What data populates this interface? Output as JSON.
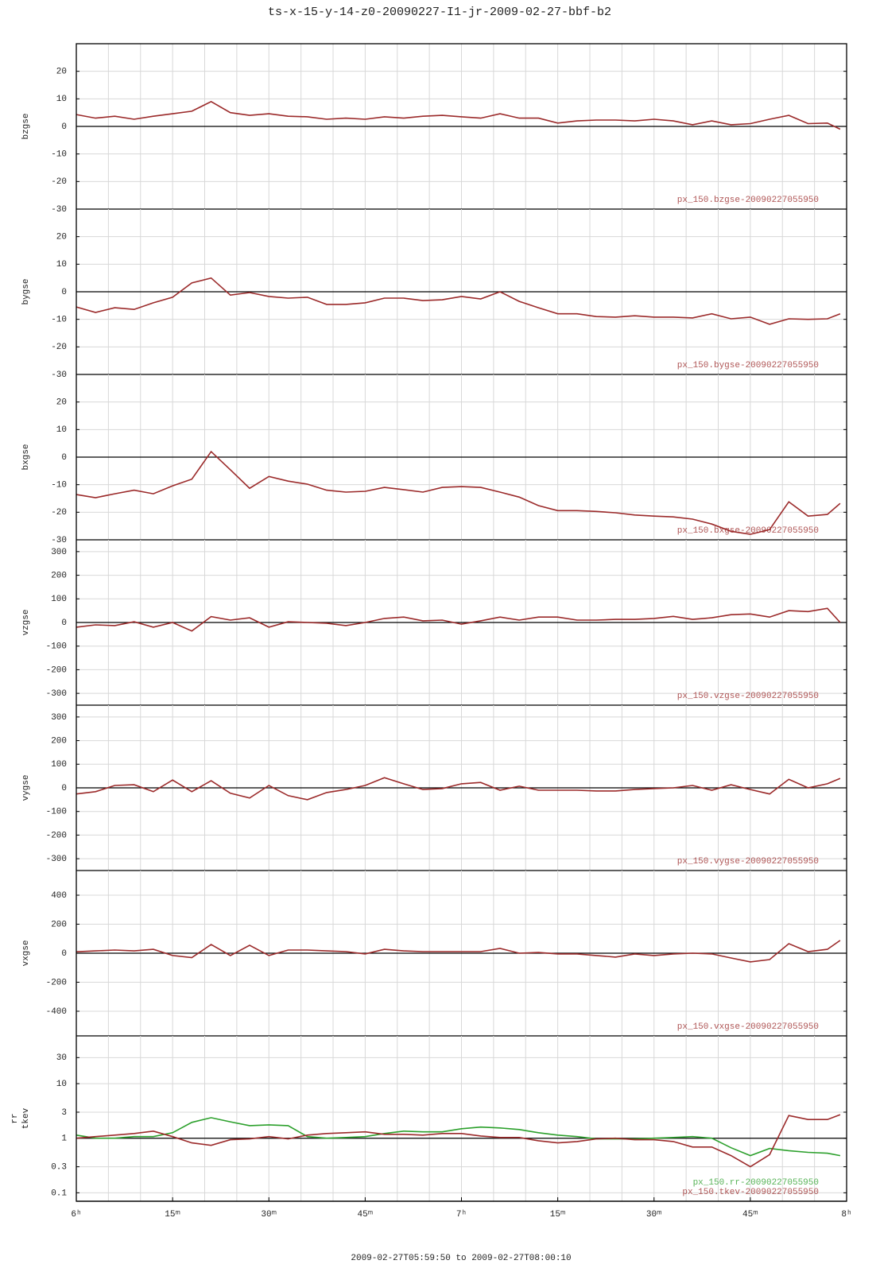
{
  "title": "ts-x-15-y-14-z0-20090227-I1-jr-2009-02-27-bbf-b2",
  "footer": "2009-02-27T05:59:50 to 2009-02-27T08:00:10",
  "chart_data": [
    {
      "type": "line",
      "ylabel": [
        "bzgse"
      ],
      "xlim": [
        0,
        120
      ],
      "ylim": [
        -30,
        30
      ],
      "yticks": [
        -30,
        -20,
        -10,
        0,
        10,
        20
      ],
      "hline": 0,
      "grid": true,
      "xgrid": [
        0,
        5,
        10,
        15,
        20,
        25,
        30,
        35,
        40,
        45,
        50,
        55,
        60,
        65,
        70,
        75,
        80,
        85,
        90,
        95,
        100,
        105,
        110,
        115,
        120
      ],
      "x": [
        0,
        3,
        6,
        9,
        12,
        15,
        18,
        21,
        24,
        27,
        30,
        33,
        36,
        39,
        42,
        45,
        48,
        51,
        54,
        57,
        60,
        63,
        66,
        69,
        72,
        75,
        78,
        81,
        84,
        87,
        90,
        93,
        96,
        99,
        102,
        105,
        108,
        111,
        114,
        117,
        119
      ],
      "series": [
        {
          "name": "px_150.bzgse-20090227055950",
          "color": "#9b2a2a",
          "values": [
            4.3,
            3,
            3.7,
            2.6,
            3.7,
            4.6,
            5.5,
            9,
            5,
            4,
            4.6,
            3.7,
            3.5,
            2.6,
            3,
            2.6,
            3.5,
            3,
            3.7,
            4,
            3.5,
            3,
            4.6,
            3,
            3,
            1.2,
            2,
            2.3,
            2.3,
            2,
            2.6,
            2,
            0.6,
            2,
            0.6,
            1,
            2.6,
            4,
            1,
            1.2,
            -1
          ]
        }
      ]
    },
    {
      "type": "line",
      "ylabel": [
        "bygse"
      ],
      "xlim": [
        0,
        120
      ],
      "ylim": [
        -30,
        30
      ],
      "yticks": [
        -30,
        -20,
        -10,
        0,
        10,
        20
      ],
      "hline": 0,
      "grid": true,
      "xgrid": [
        0,
        5,
        10,
        15,
        20,
        25,
        30,
        35,
        40,
        45,
        50,
        55,
        60,
        65,
        70,
        75,
        80,
        85,
        90,
        95,
        100,
        105,
        110,
        115,
        120
      ],
      "x": [
        0,
        3,
        6,
        9,
        12,
        15,
        18,
        21,
        24,
        27,
        30,
        33,
        36,
        39,
        42,
        45,
        48,
        51,
        54,
        57,
        60,
        63,
        66,
        69,
        72,
        75,
        78,
        81,
        84,
        87,
        90,
        93,
        96,
        99,
        102,
        105,
        108,
        111,
        114,
        117,
        119
      ],
      "series": [
        {
          "name": "px_150.bygse-20090227055950",
          "color": "#9b2a2a",
          "values": [
            -5.5,
            -7.5,
            -5.8,
            -6.4,
            -4,
            -2,
            3.2,
            5,
            -1.2,
            -0.3,
            -1.7,
            -2.3,
            -2,
            -4.6,
            -4.6,
            -4,
            -2.3,
            -2.3,
            -3.2,
            -2.9,
            -1.7,
            -2.6,
            0,
            -3.5,
            -5.8,
            -8,
            -8,
            -9,
            -9.2,
            -8.7,
            -9.2,
            -9.2,
            -9.5,
            -8,
            -9.8,
            -9.2,
            -11.8,
            -9.8,
            -10,
            -9.8,
            -8
          ]
        }
      ]
    },
    {
      "type": "line",
      "ylabel": [
        "bxgse"
      ],
      "xlim": [
        0,
        120
      ],
      "ylim": [
        -30,
        30
      ],
      "yticks": [
        -30,
        -20,
        -10,
        0,
        10,
        20
      ],
      "hline": 0,
      "grid": true,
      "xgrid": [
        0,
        5,
        10,
        15,
        20,
        25,
        30,
        35,
        40,
        45,
        50,
        55,
        60,
        65,
        70,
        75,
        80,
        85,
        90,
        95,
        100,
        105,
        110,
        115,
        120
      ],
      "x": [
        0,
        3,
        6,
        9,
        12,
        15,
        18,
        21,
        24,
        27,
        30,
        33,
        36,
        39,
        42,
        45,
        48,
        51,
        54,
        57,
        60,
        63,
        66,
        69,
        72,
        75,
        78,
        81,
        84,
        87,
        90,
        93,
        96,
        99,
        102,
        105,
        108,
        111,
        114,
        117,
        119
      ],
      "series": [
        {
          "name": "px_150.bxgse-20090227055950",
          "color": "#9b2a2a",
          "values": [
            -13.6,
            -14.7,
            -13.3,
            -12,
            -13.3,
            -10.4,
            -8,
            2,
            -4.6,
            -11.3,
            -7,
            -8.7,
            -9.8,
            -12,
            -12.7,
            -12.4,
            -11,
            -11.8,
            -12.7,
            -11,
            -10.7,
            -11,
            -12.7,
            -14.5,
            -17.6,
            -19.4,
            -19.4,
            -19.7,
            -20.2,
            -21,
            -21.4,
            -21.7,
            -22.5,
            -24.3,
            -26.9,
            -28,
            -26.3,
            -16.2,
            -21.4,
            -20.8,
            -16.8
          ]
        }
      ]
    },
    {
      "type": "line",
      "ylabel": [
        "vzgse"
      ],
      "xlim": [
        0,
        120
      ],
      "ylim": [
        -350,
        350
      ],
      "yticks": [
        -300,
        -200,
        -100,
        0,
        100,
        200,
        300
      ],
      "hline": 0,
      "grid": true,
      "xgrid": [
        0,
        5,
        10,
        15,
        20,
        25,
        30,
        35,
        40,
        45,
        50,
        55,
        60,
        65,
        70,
        75,
        80,
        85,
        90,
        95,
        100,
        105,
        110,
        115,
        120
      ],
      "x": [
        0,
        3,
        6,
        9,
        12,
        15,
        18,
        21,
        24,
        27,
        30,
        33,
        36,
        39,
        42,
        45,
        48,
        51,
        54,
        57,
        60,
        63,
        66,
        69,
        72,
        75,
        78,
        81,
        84,
        87,
        90,
        93,
        96,
        99,
        102,
        105,
        108,
        111,
        114,
        117,
        119
      ],
      "series": [
        {
          "name": "px_150.vzgse-20090227055950",
          "color": "#9b2a2a",
          "values": [
            -20,
            -10,
            -13,
            3,
            -20,
            0,
            -36,
            25,
            10,
            20,
            -20,
            3,
            0,
            -3,
            -13,
            0,
            17,
            23,
            7,
            10,
            -7,
            7,
            23,
            10,
            23,
            23,
            10,
            10,
            13,
            13,
            17,
            26,
            13,
            20,
            33,
            36,
            23,
            50,
            46,
            60,
            0
          ]
        }
      ]
    },
    {
      "type": "line",
      "ylabel": [
        "vygse"
      ],
      "xlim": [
        0,
        120
      ],
      "ylim": [
        -350,
        350
      ],
      "yticks": [
        -300,
        -200,
        -100,
        0,
        100,
        200,
        300
      ],
      "hline": 0,
      "grid": true,
      "xgrid": [
        0,
        5,
        10,
        15,
        20,
        25,
        30,
        35,
        40,
        45,
        50,
        55,
        60,
        65,
        70,
        75,
        80,
        85,
        90,
        95,
        100,
        105,
        110,
        115,
        120
      ],
      "x": [
        0,
        3,
        6,
        9,
        12,
        15,
        18,
        21,
        24,
        27,
        30,
        33,
        36,
        39,
        42,
        45,
        48,
        51,
        54,
        57,
        60,
        63,
        66,
        69,
        72,
        75,
        78,
        81,
        84,
        87,
        90,
        93,
        96,
        99,
        102,
        105,
        108,
        111,
        114,
        117,
        119
      ],
      "series": [
        {
          "name": "px_150.vygse-20090227055950",
          "color": "#9b2a2a",
          "values": [
            -26,
            -16,
            10,
            13,
            -16,
            33,
            -16,
            30,
            -23,
            -43,
            10,
            -33,
            -50,
            -20,
            -7,
            10,
            43,
            17,
            -7,
            -3,
            17,
            23,
            -10,
            7,
            -10,
            -10,
            -10,
            -13,
            -13,
            -7,
            -3,
            0,
            10,
            -10,
            13,
            -7,
            -26,
            36,
            0,
            17,
            40
          ]
        }
      ]
    },
    {
      "type": "line",
      "ylabel": [
        "vxgse"
      ],
      "xlim": [
        0,
        120
      ],
      "ylim": [
        -570,
        570
      ],
      "yticks": [
        -400,
        -200,
        0,
        200,
        400
      ],
      "hline": 0,
      "grid": true,
      "xgrid": [
        0,
        5,
        10,
        15,
        20,
        25,
        30,
        35,
        40,
        45,
        50,
        55,
        60,
        65,
        70,
        75,
        80,
        85,
        90,
        95,
        100,
        105,
        110,
        115,
        120
      ],
      "x": [
        0,
        3,
        6,
        9,
        12,
        15,
        18,
        21,
        24,
        27,
        30,
        33,
        36,
        39,
        42,
        45,
        48,
        51,
        54,
        57,
        60,
        63,
        66,
        69,
        72,
        75,
        78,
        81,
        84,
        87,
        90,
        93,
        96,
        99,
        102,
        105,
        108,
        111,
        114,
        117,
        119
      ],
      "series": [
        {
          "name": "px_150.vxgse-20090227055950",
          "color": "#9b2a2a",
          "values": [
            10,
            16,
            22,
            16,
            27,
            -16,
            -30,
            60,
            -16,
            55,
            -16,
            22,
            22,
            16,
            11,
            -5,
            27,
            16,
            11,
            11,
            11,
            11,
            33,
            0,
            5,
            -5,
            -5,
            -16,
            -27,
            -5,
            -16,
            -5,
            0,
            -5,
            -33,
            -60,
            -44,
            66,
            11,
            27,
            88
          ]
        }
      ]
    },
    {
      "type": "line",
      "log_y": true,
      "ylabel": [
        "rr",
        "tkev"
      ],
      "xlim": [
        0,
        120
      ],
      "ylim": [
        0.07,
        75
      ],
      "yticks": [
        0.1,
        0.3,
        1,
        3,
        10,
        30
      ],
      "hline": 1,
      "grid": true,
      "xgrid": [
        0,
        5,
        10,
        15,
        20,
        25,
        30,
        35,
        40,
        45,
        50,
        55,
        60,
        65,
        70,
        75,
        80,
        85,
        90,
        95,
        100,
        105,
        110,
        115,
        120
      ],
      "xticks": [
        {
          "value": 0,
          "label": "6ʰ"
        },
        {
          "value": 15,
          "label": "15ᵐ"
        },
        {
          "value": 30,
          "label": "30ᵐ"
        },
        {
          "value": 45,
          "label": "45ᵐ"
        },
        {
          "value": 60,
          "label": "7ʰ"
        },
        {
          "value": 75,
          "label": "15ᵐ"
        },
        {
          "value": 90,
          "label": "30ᵐ"
        },
        {
          "value": 105,
          "label": "45ᵐ"
        },
        {
          "value": 120,
          "label": "8ʰ"
        }
      ],
      "x": [
        0,
        3,
        6,
        9,
        12,
        15,
        18,
        21,
        24,
        27,
        30,
        33,
        36,
        39,
        42,
        45,
        48,
        51,
        54,
        57,
        60,
        63,
        66,
        69,
        72,
        75,
        78,
        81,
        84,
        87,
        90,
        93,
        96,
        99,
        102,
        105,
        108,
        111,
        114,
        117,
        119
      ],
      "series": [
        {
          "name": "px_150.rr-20090227055950",
          "color": "#2ca02c",
          "values": [
            1.14,
            1,
            1,
            1.07,
            1.07,
            1.26,
            1.95,
            2.38,
            2,
            1.7,
            1.76,
            1.7,
            1.07,
            1,
            1.03,
            1.07,
            1.22,
            1.35,
            1.31,
            1.31,
            1.49,
            1.6,
            1.54,
            1.44,
            1.26,
            1.14,
            1.07,
            0.97,
            0.97,
            0.97,
            1,
            1.03,
            1.07,
            1,
            0.67,
            0.48,
            0.65,
            0.59,
            0.55,
            0.53,
            0.48
          ]
        },
        {
          "name": "px_150.tkev-20090227055950",
          "color": "#9b2a2a",
          "values": [
            1,
            1.07,
            1.14,
            1.22,
            1.35,
            1.07,
            0.82,
            0.74,
            0.94,
            0.97,
            1.07,
            0.97,
            1.14,
            1.22,
            1.26,
            1.31,
            1.18,
            1.18,
            1.14,
            1.22,
            1.22,
            1.1,
            1.03,
            1.03,
            0.9,
            0.82,
            0.87,
            0.97,
            1,
            0.94,
            0.94,
            0.87,
            0.69,
            0.69,
            0.48,
            0.3,
            0.5,
            2.6,
            2.2,
            2.2,
            2.7
          ]
        }
      ]
    }
  ]
}
